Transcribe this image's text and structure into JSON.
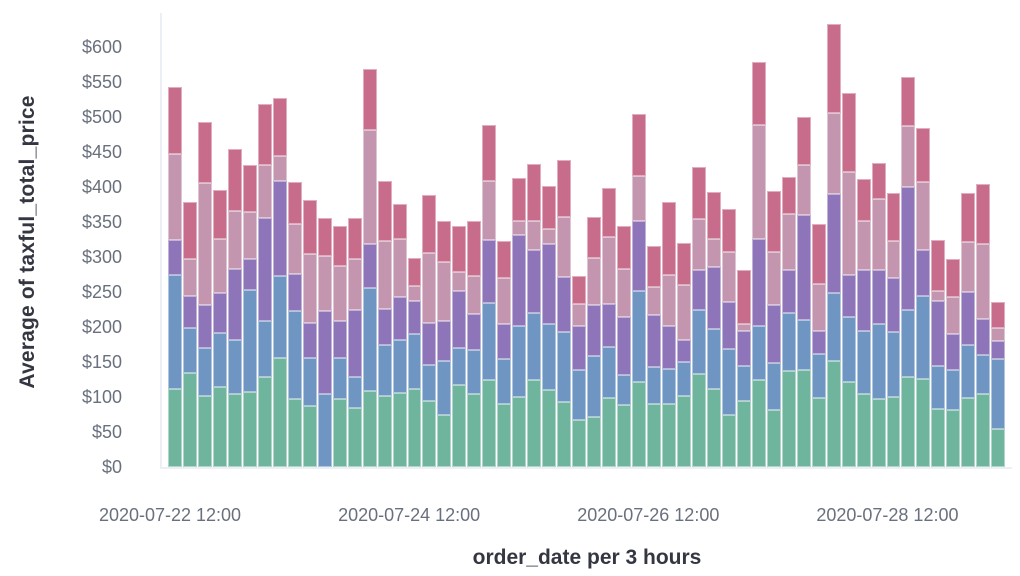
{
  "style": {
    "background": "#ffffff",
    "tick_text_color": "#69707D",
    "title_text_color": "#343741",
    "axis_line_color": "#ECEFF5"
  },
  "chart_data": {
    "type": "bar",
    "stacked": true,
    "title": "",
    "xlabel": "order_date per 3 hours",
    "ylabel": "Average of taxful_total_price",
    "ylim": [
      0,
      650
    ],
    "grid": false,
    "legend": "none",
    "bar_count": 56,
    "bin_interval": "3 hours",
    "y_tick_format": "currency-usd",
    "y_ticks": [
      {
        "value": 0,
        "label": "$0"
      },
      {
        "value": 50,
        "label": "$50"
      },
      {
        "value": 100,
        "label": "$100"
      },
      {
        "value": 150,
        "label": "$150"
      },
      {
        "value": 200,
        "label": "$200"
      },
      {
        "value": 250,
        "label": "$250"
      },
      {
        "value": 300,
        "label": "$300"
      },
      {
        "value": 350,
        "label": "$350"
      },
      {
        "value": 400,
        "label": "$400"
      },
      {
        "value": 450,
        "label": "$450"
      },
      {
        "value": 500,
        "label": "$500"
      },
      {
        "value": 550,
        "label": "$550"
      },
      {
        "value": 600,
        "label": "$600"
      }
    ],
    "x_ticks": [
      {
        "bar_index": 0,
        "label": "2020-07-22 12:00"
      },
      {
        "bar_index": 16,
        "label": "2020-07-24 12:00"
      },
      {
        "bar_index": 32,
        "label": "2020-07-26 12:00"
      },
      {
        "bar_index": 48,
        "label": "2020-07-28 12:00"
      }
    ],
    "series": [
      {
        "name": "series-1-green",
        "color": "#6FB59E",
        "values": [
          111,
          135,
          101,
          114,
          104,
          107,
          129,
          156,
          97,
          87,
          0,
          97,
          85,
          109,
          102,
          106,
          112,
          95,
          75,
          117,
          105,
          124,
          90,
          100,
          124,
          110,
          93,
          67,
          71,
          98,
          88,
          121,
          90,
          90,
          101,
          133,
          111,
          75,
          95,
          124,
          81,
          137,
          138,
          98,
          152,
          121,
          104,
          97,
          100,
          129,
          126,
          83,
          81,
          98,
          105,
          55
        ]
      },
      {
        "name": "series-2-blue",
        "color": "#6F96C3",
        "values": [
          164,
          64,
          69,
          78,
          77,
          146,
          80,
          117,
          126,
          69,
          104,
          59,
          43,
          147,
          73,
          76,
          78,
          51,
          77,
          53,
          62,
          111,
          64,
          102,
          96,
          94,
          100,
          71,
          88,
          73,
          43,
          131,
          53,
          50,
          49,
          91,
          86,
          93,
          50,
          78,
          68,
          83,
          72,
          63,
          96,
          93,
          90,
          107,
          93,
          95,
          118,
          62,
          57,
          76,
          55,
          100
        ]
      },
      {
        "name": "series-3-purple",
        "color": "#8E74B8",
        "values": [
          50,
          45,
          62,
          57,
          102,
          44,
          147,
          136,
          53,
          50,
          119,
          53,
          97,
          62,
          51,
          61,
          47,
          60,
          56,
          82,
          52,
          89,
          50,
          129,
          90,
          114,
          78,
          63,
          73,
          62,
          83,
          100,
          74,
          62,
          31,
          57,
          89,
          68,
          50,
          124,
          83,
          62,
          150,
          34,
          142,
          61,
          88,
          78,
          77,
          176,
          66,
          92,
          52,
          76,
          52,
          25
        ]
      },
      {
        "name": "series-4-mauve",
        "color": "#C495AF",
        "values": [
          122,
          53,
          174,
          77,
          83,
          67,
          75,
          35,
          71,
          98,
          79,
          78,
          72,
          164,
          97,
          83,
          22,
          100,
          85,
          27,
          54,
          85,
          66,
          21,
          42,
          22,
          86,
          32,
          67,
          95,
          69,
          64,
          40,
          73,
          79,
          73,
          40,
          71,
          10,
          162,
          75,
          79,
          71,
          67,
          116,
          146,
          69,
          101,
          53,
          87,
          97,
          15,
          53,
          71,
          107,
          18
        ]
      },
      {
        "name": "series-5-rose",
        "color": "#C86C8C",
        "values": [
          96,
          81,
          87,
          70,
          88,
          67,
          88,
          83,
          60,
          77,
          54,
          57,
          59,
          86,
          85,
          50,
          40,
          83,
          58,
          66,
          78,
          80,
          53,
          61,
          81,
          62,
          81,
          40,
          58,
          70,
          61,
          88,
          59,
          104,
          60,
          74,
          67,
          61,
          77,
          90,
          88,
          53,
          69,
          85,
          127,
          114,
          60,
          52,
          69,
          70,
          78,
          73,
          54,
          71,
          85,
          38
        ]
      }
    ]
  }
}
